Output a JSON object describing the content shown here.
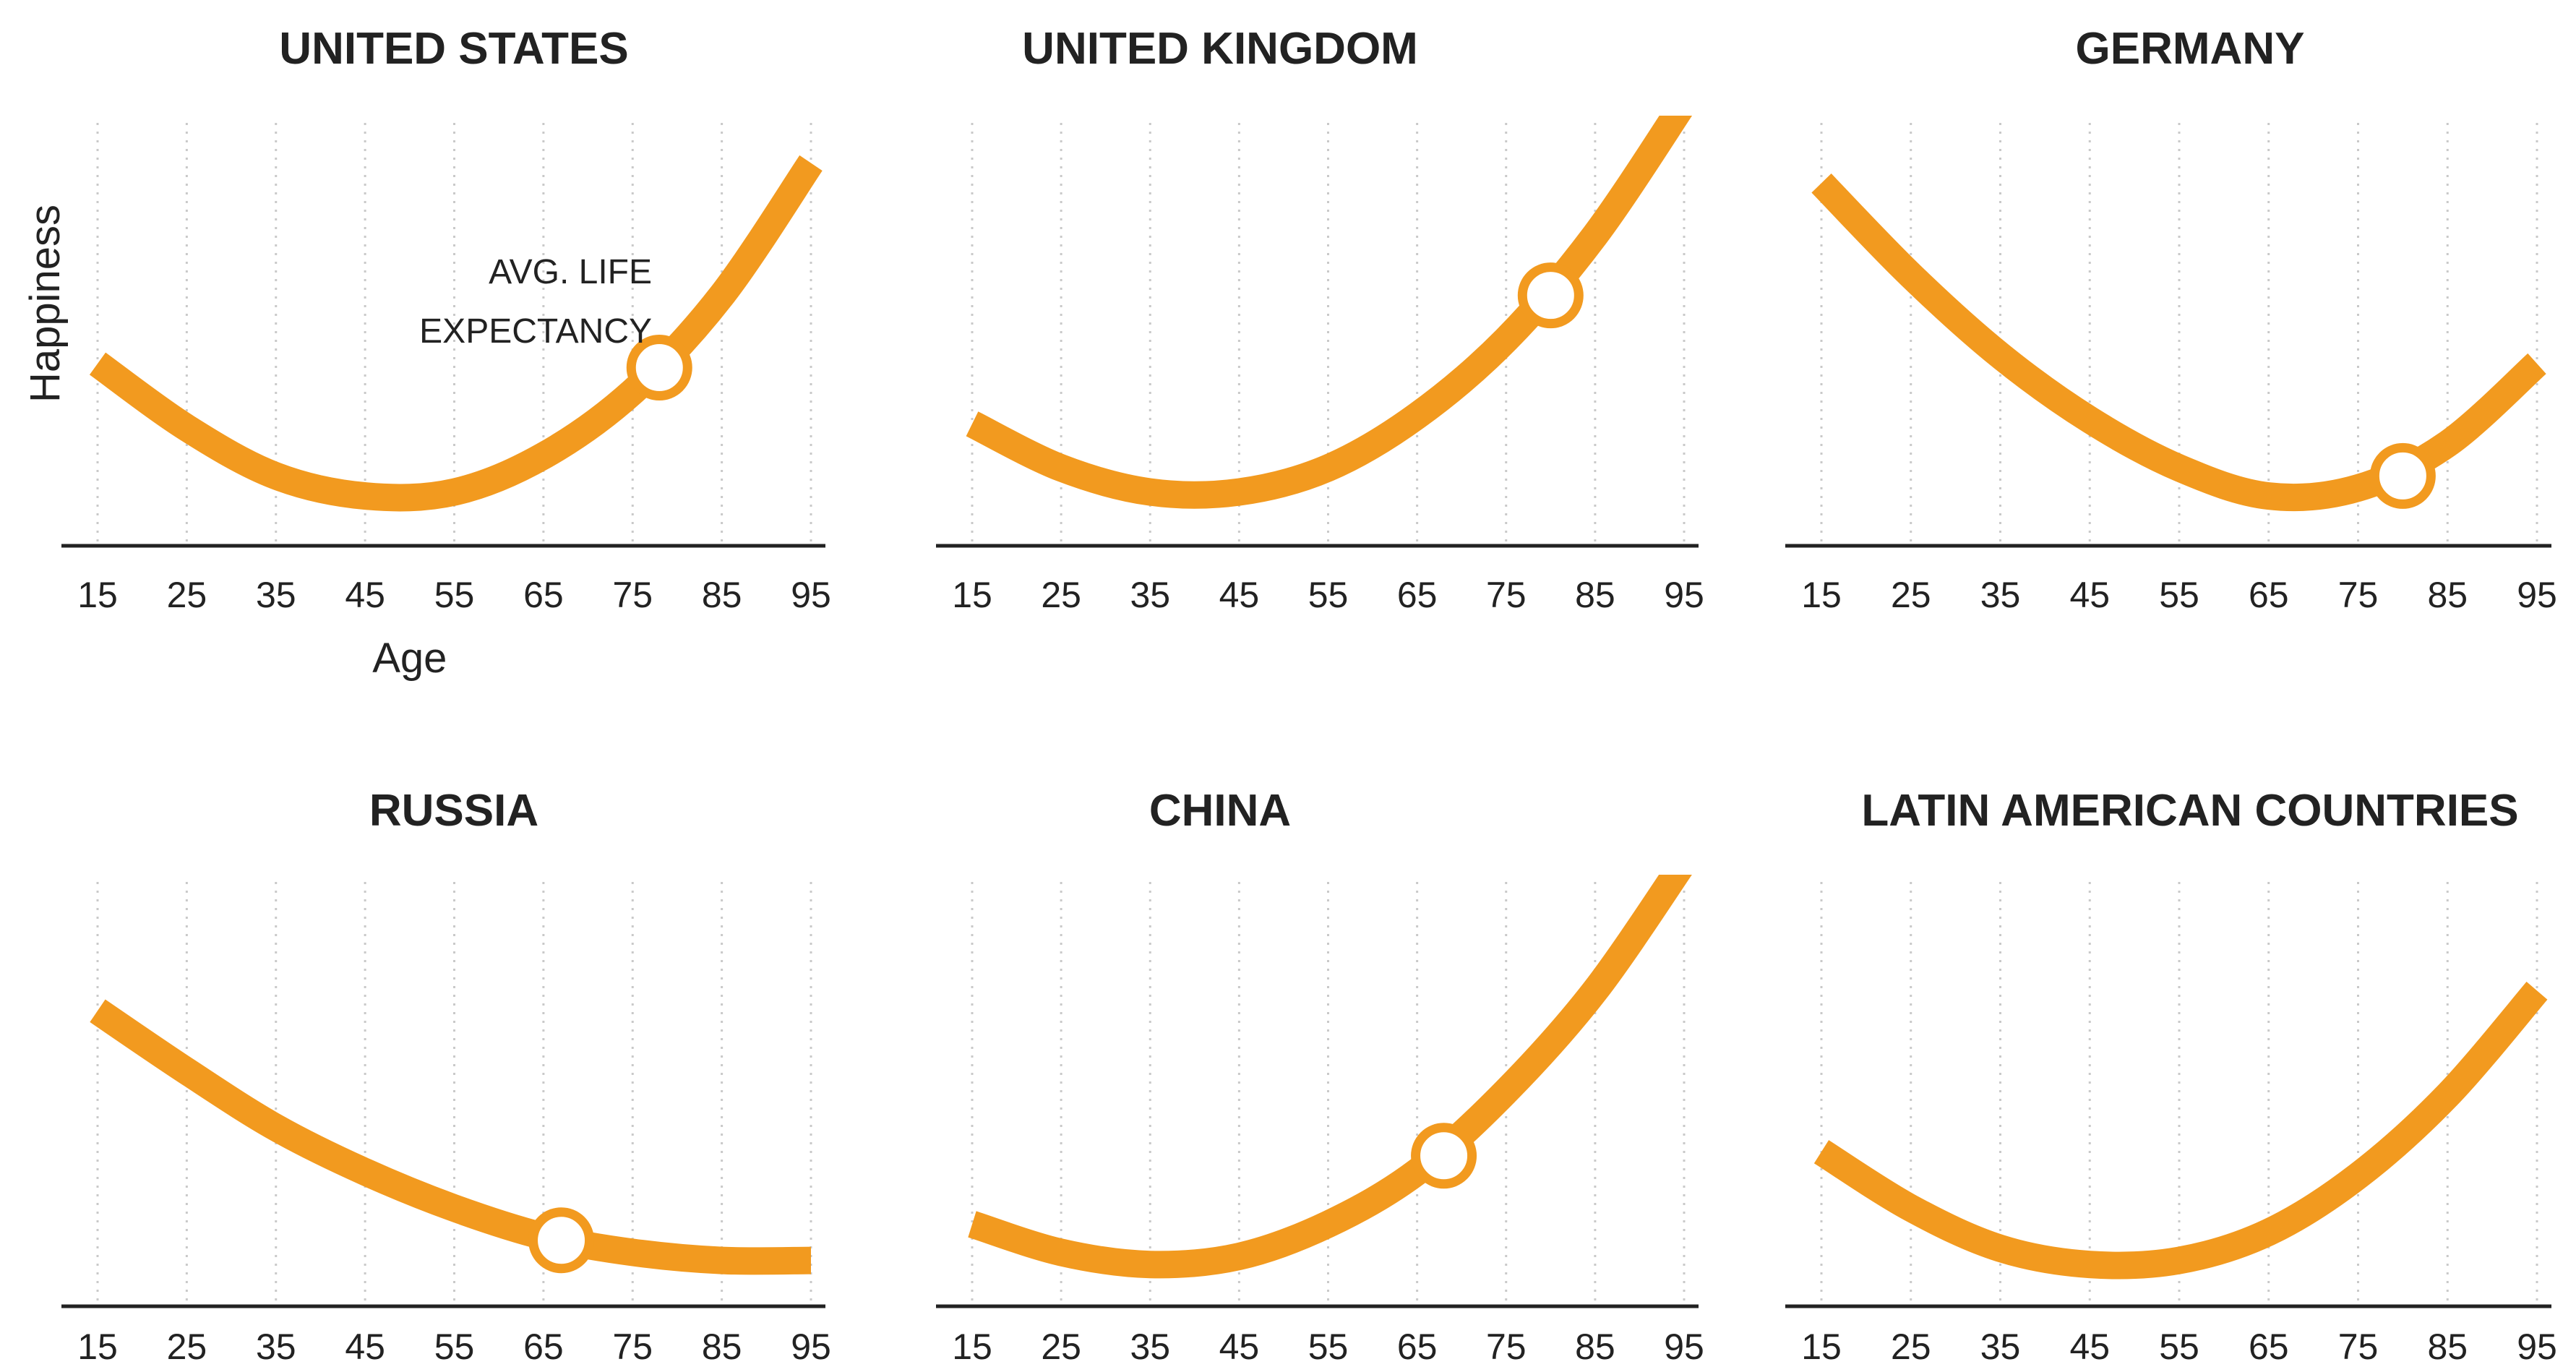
{
  "colors": {
    "curve": "#F29A1F",
    "axis": "#222222",
    "grid": "#c9c9c9"
  },
  "chart_data": [
    {
      "type": "line",
      "title": "UNITED STATES",
      "xlabel": "Age",
      "ylabel": "Happiness",
      "annotation": [
        "AVG. LIFE",
        "EXPECTANCY"
      ],
      "x_ticks": [
        15,
        25,
        35,
        45,
        55,
        65,
        75,
        85,
        95
      ],
      "xlim": [
        15,
        95
      ],
      "ylim": [
        0,
        1
      ],
      "grid": "vertical dotted",
      "x": [
        15,
        25,
        35,
        45,
        55,
        65,
        75,
        85,
        95
      ],
      "values": [
        0.4,
        0.24,
        0.12,
        0.07,
        0.08,
        0.17,
        0.33,
        0.57,
        0.9
      ],
      "marker": {
        "x": 78,
        "y": 0.39
      }
    },
    {
      "type": "line",
      "title": "UNITED KINGDOM",
      "x_ticks": [
        15,
        25,
        35,
        45,
        55,
        65,
        75,
        85,
        95
      ],
      "xlim": [
        15,
        95
      ],
      "ylim": [
        0,
        1
      ],
      "x": [
        15,
        25,
        35,
        45,
        55,
        65,
        75,
        85,
        95
      ],
      "values": [
        0.25,
        0.14,
        0.08,
        0.08,
        0.14,
        0.27,
        0.46,
        0.72,
        1.05
      ],
      "marker": {
        "x": 80,
        "y": 0.57
      }
    },
    {
      "type": "line",
      "title": "GERMANY",
      "x_ticks": [
        15,
        25,
        35,
        45,
        55,
        65,
        75,
        85,
        95
      ],
      "xlim": [
        15,
        95
      ],
      "ylim": [
        0,
        1
      ],
      "x": [
        15,
        25,
        35,
        45,
        55,
        65,
        75,
        85,
        95
      ],
      "values": [
        0.85,
        0.62,
        0.42,
        0.26,
        0.14,
        0.07,
        0.09,
        0.2,
        0.4
      ],
      "marker": {
        "x": 80,
        "y": 0.12
      }
    },
    {
      "type": "line",
      "title": "RUSSIA",
      "x_ticks": [
        15,
        25,
        35,
        45,
        55,
        65,
        75,
        85,
        95
      ],
      "xlim": [
        15,
        95
      ],
      "ylim": [
        0,
        1
      ],
      "x": [
        15,
        25,
        35,
        45,
        55,
        65,
        75,
        85,
        95
      ],
      "values": [
        0.68,
        0.53,
        0.39,
        0.28,
        0.19,
        0.12,
        0.08,
        0.06,
        0.06
      ],
      "marker": {
        "x": 67,
        "y": 0.11
      }
    },
    {
      "type": "line",
      "title": "CHINA",
      "x_ticks": [
        15,
        25,
        35,
        45,
        55,
        65,
        75,
        85,
        95
      ],
      "xlim": [
        15,
        95
      ],
      "ylim": [
        0,
        1
      ],
      "x": [
        15,
        25,
        35,
        45,
        55,
        65,
        75,
        85,
        95
      ],
      "values": [
        0.15,
        0.08,
        0.05,
        0.07,
        0.15,
        0.28,
        0.48,
        0.73,
        1.05
      ],
      "marker": {
        "x": 68,
        "y": 0.32
      }
    },
    {
      "type": "line",
      "title": "LATIN AMERICAN COUNTRIES",
      "x_ticks": [
        15,
        25,
        35,
        45,
        55,
        65,
        75,
        85,
        95
      ],
      "xlim": [
        15,
        95
      ],
      "ylim": [
        0,
        1
      ],
      "x": [
        15,
        25,
        35,
        45,
        55,
        65,
        75,
        85,
        95
      ],
      "values": [
        0.33,
        0.19,
        0.09,
        0.05,
        0.06,
        0.13,
        0.27,
        0.47,
        0.73
      ]
    }
  ]
}
